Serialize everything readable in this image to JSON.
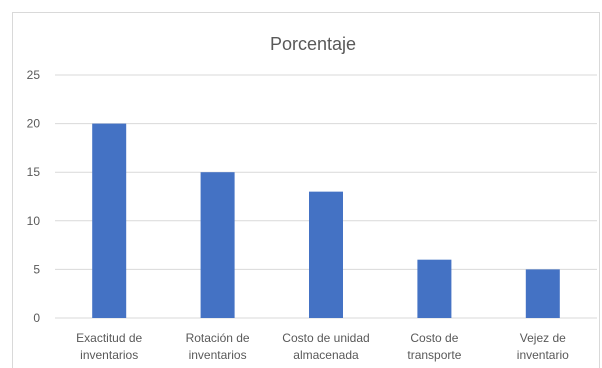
{
  "chart_data": {
    "type": "bar",
    "title": "Porcentaje",
    "xlabel": "",
    "ylabel": "",
    "categories": [
      [
        "Exactitud de",
        "inventarios"
      ],
      [
        "Rotación de",
        "inventarios"
      ],
      [
        "Costo de unidad",
        "almacenada"
      ],
      [
        "Costo de",
        "transporte"
      ],
      [
        "Vejez de",
        "inventario"
      ]
    ],
    "values": [
      20,
      15,
      13,
      6,
      5
    ],
    "ylim": [
      0,
      25
    ],
    "yticks": [
      0,
      5,
      10,
      15,
      20,
      25
    ],
    "grid": true,
    "legend": "none",
    "bar_color": "#4472c4"
  }
}
